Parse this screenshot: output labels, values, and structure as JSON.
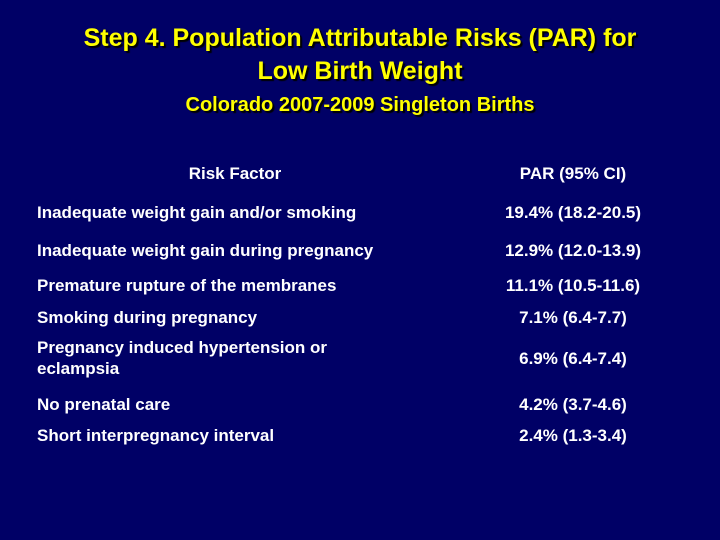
{
  "slide": {
    "title_line1": "Step 4. Population Attributable Risks (PAR) for",
    "title_line2": "Low Birth Weight",
    "subtitle": "Colorado 2007-2009 Singleton Births"
  },
  "table": {
    "headers": {
      "factor": "Risk Factor",
      "par": "PAR (95% CI)"
    },
    "rows": [
      {
        "factor": "Inadequate weight gain and/or smoking",
        "par": "19.4% (18.2-20.5)"
      },
      {
        "factor": "Inadequate weight gain during pregnancy",
        "par": "12.9% (12.0-13.9)"
      },
      {
        "factor": "Premature rupture of the membranes",
        "par": "11.1% (10.5-11.6)"
      },
      {
        "factor": "Smoking during pregnancy",
        "par": "7.1% (6.4-7.7)"
      },
      {
        "factor_line1": "Pregnancy induced hypertension or",
        "factor_line2": "eclampsia",
        "par": "6.9% (6.4-7.4)"
      },
      {
        "factor": "No prenatal care",
        "par": "4.2% (3.7-4.6)"
      },
      {
        "factor": "Short interpregnancy interval",
        "par": "2.4% (1.3-3.4)"
      }
    ]
  },
  "colors": {
    "background": "#000066",
    "title": "#ffff00",
    "text": "#ffffff"
  }
}
